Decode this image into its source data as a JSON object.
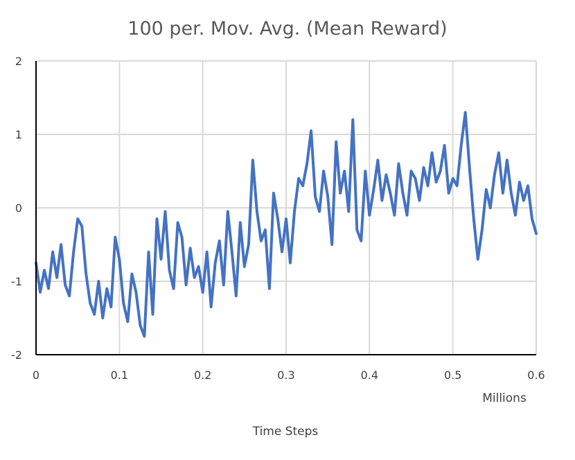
{
  "chart_data": {
    "type": "line",
    "title": "100 per. Mov. Avg. (Mean Reward)",
    "xlabel": "Time Steps",
    "x_unit_label": "Millions",
    "ylabel": "",
    "xlim": [
      0,
      0.6
    ],
    "ylim": [
      -2,
      2
    ],
    "x_ticks": [
      "0",
      "0.1",
      "0.2",
      "0.3",
      "0.4",
      "0.5",
      "0.6"
    ],
    "y_ticks": [
      "2",
      "1",
      "0",
      "-1",
      "-2"
    ],
    "grid": true,
    "legend": false,
    "colors": {
      "series": "#4472c4",
      "grid": "#d9d9d9",
      "axis": "#000000"
    },
    "series": [
      {
        "x": [
          0,
          0.005,
          0.01,
          0.015,
          0.02,
          0.025,
          0.03,
          0.035,
          0.04,
          0.045,
          0.05,
          0.055,
          0.06,
          0.065,
          0.07,
          0.075,
          0.08,
          0.085,
          0.09,
          0.095,
          0.1,
          0.105,
          0.11,
          0.115,
          0.12,
          0.125,
          0.13,
          0.135,
          0.14,
          0.145,
          0.15,
          0.155,
          0.16,
          0.165,
          0.17,
          0.175,
          0.18,
          0.185,
          0.19,
          0.195,
          0.2,
          0.205,
          0.21,
          0.215,
          0.22,
          0.225,
          0.23,
          0.235,
          0.24,
          0.245,
          0.25,
          0.255,
          0.26,
          0.265,
          0.27,
          0.275,
          0.28,
          0.285,
          0.29,
          0.295,
          0.3,
          0.305,
          0.31,
          0.315,
          0.32,
          0.325,
          0.33,
          0.335,
          0.34,
          0.345,
          0.35,
          0.355,
          0.36,
          0.365,
          0.37,
          0.375,
          0.38,
          0.385,
          0.39,
          0.395,
          0.4,
          0.405,
          0.41,
          0.415,
          0.42,
          0.425,
          0.43,
          0.435,
          0.44,
          0.445,
          0.45,
          0.455,
          0.46,
          0.465,
          0.47,
          0.475,
          0.48,
          0.485,
          0.49,
          0.495,
          0.5,
          0.505,
          0.51,
          0.515,
          0.52,
          0.525,
          0.53,
          0.535,
          0.54,
          0.545,
          0.55,
          0.555,
          0.56,
          0.565,
          0.57,
          0.575,
          0.58,
          0.585,
          0.59,
          0.595,
          0.6
        ],
        "y": [
          -0.75,
          -1.15,
          -0.85,
          -1.1,
          -0.6,
          -0.95,
          -0.5,
          -1.05,
          -1.2,
          -0.6,
          -0.15,
          -0.25,
          -0.9,
          -1.3,
          -1.45,
          -1.0,
          -1.5,
          -1.1,
          -1.35,
          -0.4,
          -0.7,
          -1.3,
          -1.55,
          -0.9,
          -1.15,
          -1.6,
          -1.75,
          -0.6,
          -1.45,
          -0.15,
          -0.7,
          -0.05,
          -0.85,
          -1.1,
          -0.2,
          -0.4,
          -1.05,
          -0.55,
          -0.95,
          -0.8,
          -1.15,
          -0.6,
          -1.35,
          -0.75,
          -0.45,
          -1.05,
          -0.05,
          -0.6,
          -1.2,
          -0.2,
          -0.8,
          -0.5,
          0.65,
          -0.05,
          -0.45,
          -0.3,
          -1.1,
          0.2,
          -0.15,
          -0.6,
          -0.15,
          -0.75,
          -0.05,
          0.4,
          0.3,
          0.6,
          1.05,
          0.15,
          -0.05,
          0.5,
          0.15,
          -0.5,
          0.9,
          0.2,
          0.5,
          -0.05,
          1.2,
          -0.3,
          -0.45,
          0.5,
          -0.1,
          0.25,
          0.65,
          0.1,
          0.45,
          0.2,
          -0.1,
          0.6,
          0.2,
          -0.1,
          0.5,
          0.4,
          0.1,
          0.55,
          0.3,
          0.75,
          0.35,
          0.5,
          0.85,
          0.2,
          0.4,
          0.3,
          0.85,
          1.3,
          0.55,
          -0.15,
          -0.7,
          -0.3,
          0.25,
          0.0,
          0.45,
          0.75,
          0.2,
          0.65,
          0.2,
          -0.1,
          0.35,
          0.1,
          0.3,
          -0.15,
          -0.35
        ]
      }
    ]
  }
}
